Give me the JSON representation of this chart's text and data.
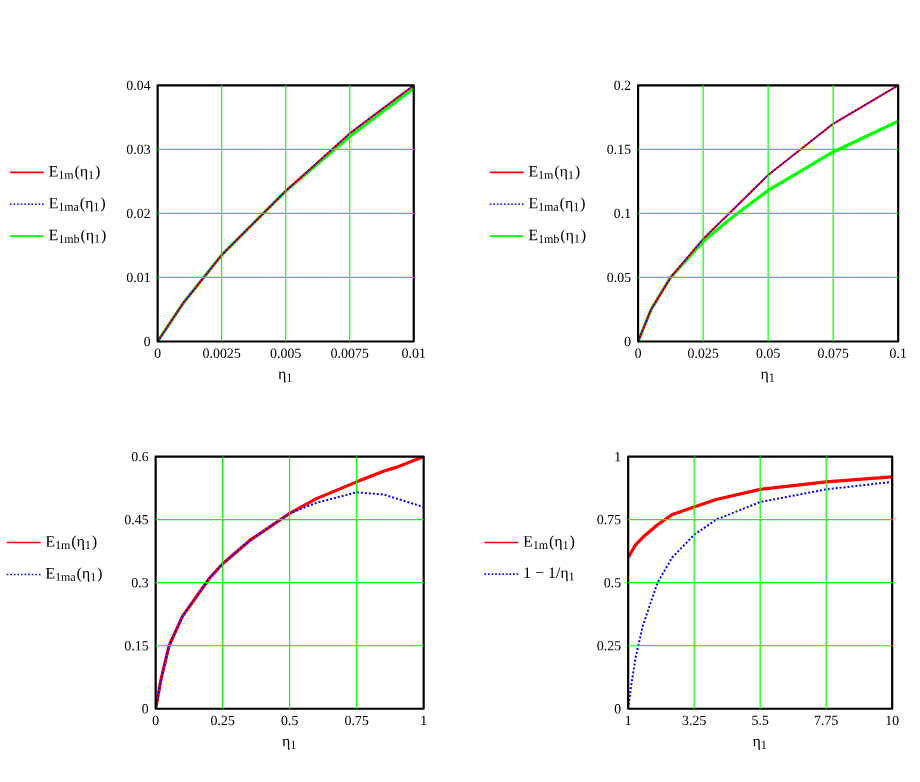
{
  "chart_data": [
    {
      "type": "line",
      "xlabel": "η$_{1}$",
      "x": [
        0,
        0.001,
        0.0025,
        0.005,
        0.0075,
        0.01
      ],
      "xlim": [
        0,
        0.01
      ],
      "ylim": [
        0,
        0.04
      ],
      "xticks": [
        0,
        0.0025,
        0.005,
        0.0075,
        0.01
      ],
      "yticks": [
        0,
        0.01,
        0.02,
        0.03,
        0.04
      ],
      "grid": true,
      "legend": "left",
      "series": [
        {
          "name": "E$_{1m}$(η$_{1}$)",
          "color": "#ff0000",
          "line_style": "solid",
          "values": [
            0,
            0.006,
            0.0135,
            0.0235,
            0.0325,
            0.04
          ]
        },
        {
          "name": "E$_{1ma}$(η$_{1}$)",
          "color": "#0000ff",
          "line_style": "dotted",
          "values": [
            0,
            0.006,
            0.0135,
            0.0235,
            0.0325,
            0.04
          ]
        },
        {
          "name": "E$_{1mb}$(η$_{1}$)",
          "color": "#00ff00",
          "line_style": "solid",
          "values": [
            0,
            0.006,
            0.0135,
            0.0235,
            0.032,
            0.0395
          ]
        }
      ]
    },
    {
      "type": "line",
      "xlabel": "η$_{1}$",
      "x": [
        0,
        0.005,
        0.0125,
        0.025,
        0.035,
        0.05,
        0.075,
        0.1
      ],
      "xlim": [
        0,
        0.1
      ],
      "ylim": [
        0,
        0.2
      ],
      "xticks": [
        0,
        0.025,
        0.05,
        0.075,
        0.1
      ],
      "yticks": [
        0,
        0.05,
        0.1,
        0.15,
        0.2
      ],
      "grid": true,
      "legend": "left",
      "series": [
        {
          "name": "E$_{1m}$(η$_{1}$)",
          "color": "#ff0000",
          "line_style": "solid",
          "values": [
            0,
            0.025,
            0.05,
            0.08,
            0.1,
            0.13,
            0.17,
            0.2
          ]
        },
        {
          "name": "E$_{1ma}$(η$_{1}$)",
          "color": "#0000ff",
          "line_style": "dotted",
          "values": [
            0,
            0.025,
            0.05,
            0.08,
            0.1,
            0.13,
            0.17,
            0.2
          ]
        },
        {
          "name": "E$_{1mb}$(η$_{1}$)",
          "color": "#00ff00",
          "line_style": "solid",
          "values": [
            0,
            0.025,
            0.05,
            0.078,
            0.095,
            0.118,
            0.148,
            0.172
          ]
        }
      ]
    },
    {
      "type": "line",
      "xlabel": "η$_{1}$",
      "x": [
        0,
        0.02,
        0.05,
        0.1,
        0.2,
        0.25,
        0.35,
        0.5,
        0.6,
        0.75,
        0.85,
        0.9,
        1
      ],
      "xlim": [
        0,
        1
      ],
      "ylim": [
        0,
        0.6
      ],
      "xticks": [
        0,
        0.25,
        0.5,
        0.75,
        1
      ],
      "yticks": [
        0,
        0.15,
        0.3,
        0.45,
        0.6
      ],
      "grid": true,
      "legend": "left",
      "series": [
        {
          "name": "E$_{1m}$(η$_{1}$)",
          "color": "#ff0000",
          "line_style": "solid",
          "values": [
            0,
            0.07,
            0.15,
            0.22,
            0.31,
            0.345,
            0.4,
            0.465,
            0.5,
            0.54,
            0.565,
            0.575,
            0.6
          ]
        },
        {
          "name": "E$_{1ma}$(η$_{1}$)",
          "color": "#0000ff",
          "line_style": "dotted",
          "values": [
            0,
            0.07,
            0.15,
            0.22,
            0.31,
            0.345,
            0.4,
            0.465,
            0.49,
            0.515,
            0.51,
            0.5,
            0.48
          ]
        }
      ]
    },
    {
      "type": "line",
      "xlabel": "η$_{1}$",
      "x": [
        1,
        1.1,
        1.25,
        1.5,
        2,
        2.5,
        3.25,
        4,
        5.5,
        7.75,
        10
      ],
      "xlim": [
        1,
        10
      ],
      "ylim": [
        0,
        1
      ],
      "xticks": [
        1,
        3.25,
        5.5,
        7.75,
        10
      ],
      "yticks": [
        0,
        0.25,
        0.5,
        0.75,
        1
      ],
      "grid": true,
      "legend": "left",
      "series": [
        {
          "name": "E$_{1m}$(η$_{1}$)",
          "color": "#ff0000",
          "line_style": "solid",
          "values": [
            0.6,
            0.62,
            0.65,
            0.68,
            0.73,
            0.77,
            0.8,
            0.83,
            0.87,
            0.9,
            0.92
          ]
        },
        {
          "name": "1 − 1/η$_{1}$",
          "color": "#0000ff",
          "line_style": "dotted",
          "values": [
            0,
            0.09,
            0.2,
            0.33,
            0.5,
            0.6,
            0.69,
            0.75,
            0.82,
            0.87,
            0.9
          ]
        }
      ]
    }
  ]
}
